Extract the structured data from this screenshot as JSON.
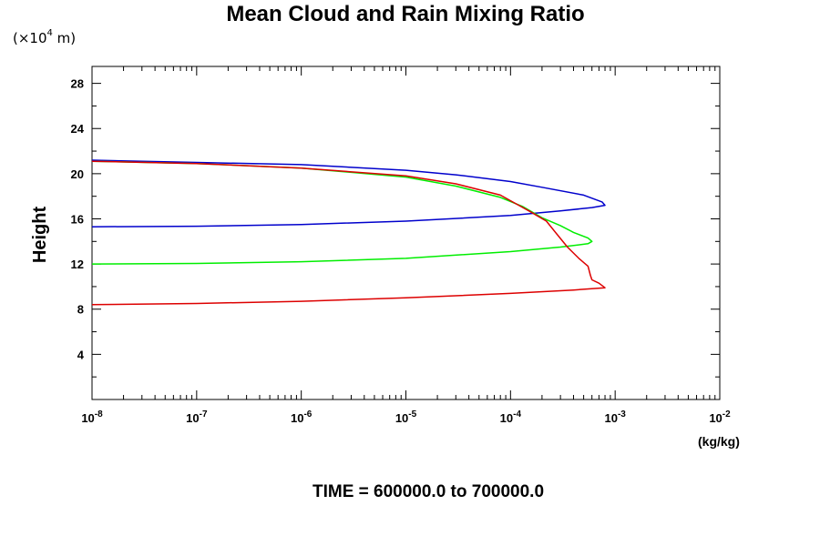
{
  "chart_data": {
    "type": "line",
    "title": "Mean Cloud and Rain Mixing Ratio",
    "subtitle": "TIME = 600000.0 to 700000.0",
    "ylabel": "Height",
    "y_units": "(×10⁴ m)",
    "y_units_base": "(×10",
    "y_units_exp": "4",
    "y_units_tail": " m)",
    "xlabel_units": "(kg/kg)",
    "x_scale": "log",
    "xlim": [
      1e-08,
      0.01
    ],
    "ylim": [
      0,
      29.5
    ],
    "x_ticks": [
      {
        "base": "10",
        "exp": "-8"
      },
      {
        "base": "10",
        "exp": "-7"
      },
      {
        "base": "10",
        "exp": "-6"
      },
      {
        "base": "10",
        "exp": "-5"
      },
      {
        "base": "10",
        "exp": "-4"
      },
      {
        "base": "10",
        "exp": "-3"
      },
      {
        "base": "10",
        "exp": "-2"
      }
    ],
    "y_ticks": [
      "4",
      "8",
      "12",
      "16",
      "20",
      "24",
      "28"
    ],
    "y_tick_values": [
      4,
      8,
      12,
      16,
      20,
      24,
      28
    ],
    "grid": false,
    "series": [
      {
        "color": "#0000cc",
        "points": [
          [
            1e-08,
            15.3
          ],
          [
            1e-07,
            15.35
          ],
          [
            1e-06,
            15.5
          ],
          [
            1e-05,
            15.8
          ],
          [
            0.0001,
            16.3
          ],
          [
            0.0003,
            16.7
          ],
          [
            0.0006,
            17.0
          ],
          [
            0.0008,
            17.2
          ],
          [
            0.00075,
            17.5
          ],
          [
            0.0005,
            18.1
          ],
          [
            0.0002,
            18.8
          ],
          [
            0.0001,
            19.3
          ],
          [
            3e-05,
            19.9
          ],
          [
            1e-05,
            20.3
          ],
          [
            1e-06,
            20.8
          ],
          [
            1e-07,
            21.0
          ],
          [
            1e-08,
            21.2
          ]
        ]
      },
      {
        "color": "#00ee00",
        "points": [
          [
            1e-08,
            12.0
          ],
          [
            1e-07,
            12.05
          ],
          [
            1e-06,
            12.2
          ],
          [
            1e-05,
            12.5
          ],
          [
            0.0001,
            13.1
          ],
          [
            0.0003,
            13.5
          ],
          [
            0.00055,
            13.8
          ],
          [
            0.0006,
            14.0
          ],
          [
            0.00055,
            14.3
          ],
          [
            0.0004,
            14.8
          ],
          [
            0.0003,
            15.4
          ],
          [
            0.0002,
            16.1
          ],
          [
            0.00013,
            17.1
          ],
          [
            8e-05,
            17.9
          ],
          [
            3e-05,
            18.9
          ],
          [
            1e-05,
            19.7
          ],
          [
            1e-06,
            20.5
          ],
          [
            1e-07,
            20.9
          ],
          [
            1e-08,
            21.1
          ]
        ]
      },
      {
        "color": "#dd0000",
        "points": [
          [
            1e-08,
            8.4
          ],
          [
            1e-07,
            8.5
          ],
          [
            1e-06,
            8.7
          ],
          [
            1e-05,
            9.0
          ],
          [
            0.0001,
            9.4
          ],
          [
            0.0004,
            9.7
          ],
          [
            0.0008,
            9.9
          ],
          [
            0.0007,
            10.3
          ],
          [
            0.0006,
            10.6
          ],
          [
            0.00058,
            11.0
          ],
          [
            0.00055,
            11.8
          ],
          [
            0.00045,
            12.5
          ],
          [
            0.00035,
            13.5
          ],
          [
            0.00028,
            14.6
          ],
          [
            0.00022,
            15.8
          ],
          [
            0.00015,
            16.7
          ],
          [
            0.00012,
            17.2
          ],
          [
            8e-05,
            18.1
          ],
          [
            3e-05,
            19.1
          ],
          [
            1e-05,
            19.8
          ],
          [
            1e-06,
            20.5
          ],
          [
            1e-07,
            20.9
          ],
          [
            1e-08,
            21.1
          ]
        ]
      }
    ]
  }
}
